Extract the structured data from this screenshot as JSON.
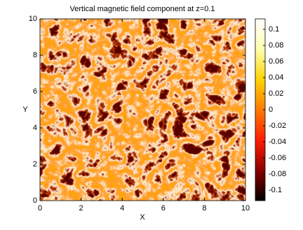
{
  "chart_data": {
    "type": "image",
    "title": "Vertical magnetic field component at z=0.1",
    "xlabel": "X",
    "ylabel": "Y",
    "xlim": [
      0,
      10
    ],
    "xticks": [
      0,
      2,
      4,
      6,
      8,
      10
    ],
    "ylim": [
      0,
      10
    ],
    "yticks": [
      0,
      2,
      4,
      6,
      8,
      10
    ],
    "colorbar": {
      "clim": [
        -0.113,
        0.113
      ],
      "ticks": [
        -0.1,
        -0.08,
        -0.06,
        -0.04,
        -0.02,
        0,
        0.02,
        0.04,
        0.06,
        0.08,
        0.1
      ],
      "colormap": [
        "#000000",
        "#8a0000",
        "#ff1e00",
        "#ff7a00",
        "#ffd400",
        "#ffffb0",
        "#ffffff"
      ]
    }
  }
}
